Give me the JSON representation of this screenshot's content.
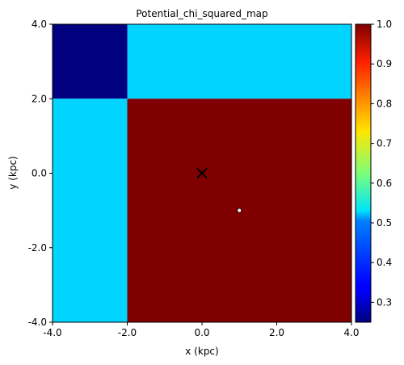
{
  "chart_data": {
    "type": "heatmap",
    "title": "Potential_chi_squared_map",
    "xlabel": "x (kpc)",
    "ylabel": "y (kpc)",
    "xlim": [
      -4.0,
      4.0
    ],
    "ylim": [
      -4.0,
      4.0
    ],
    "x_ticks": [
      "-4.0",
      "-2.0",
      "0.0",
      "2.0",
      "4.0"
    ],
    "y_ticks": [
      "-4.0",
      "-2.0",
      "0.0",
      "2.0",
      "4.0"
    ],
    "cells": [
      {
        "x0": -4.0,
        "x1": -2.0,
        "y0": 2.0,
        "y1": 4.0,
        "value": 0.25
      },
      {
        "x0": -2.0,
        "x1": 4.0,
        "y0": 2.0,
        "y1": 4.0,
        "value": 0.5
      },
      {
        "x0": -4.0,
        "x1": -2.0,
        "y0": -4.0,
        "y1": 2.0,
        "value": 0.5
      },
      {
        "x0": -2.0,
        "x1": 4.0,
        "y0": -4.0,
        "y1": 2.0,
        "value": 1.0
      }
    ],
    "markers": [
      {
        "name": "x-marker",
        "shape": "x",
        "x": 0.0,
        "y": 0.0,
        "color": "#000000"
      },
      {
        "name": "dot-marker",
        "shape": "dot",
        "x": 1.0,
        "y": -1.0,
        "color": "#ffffff"
      }
    ],
    "colorbar": {
      "colormap": "jet",
      "range": [
        0.25,
        1.0
      ],
      "ticks": [
        "0.3",
        "0.4",
        "0.5",
        "0.6",
        "0.7",
        "0.8",
        "0.9",
        "1.0"
      ]
    },
    "grid": false
  }
}
